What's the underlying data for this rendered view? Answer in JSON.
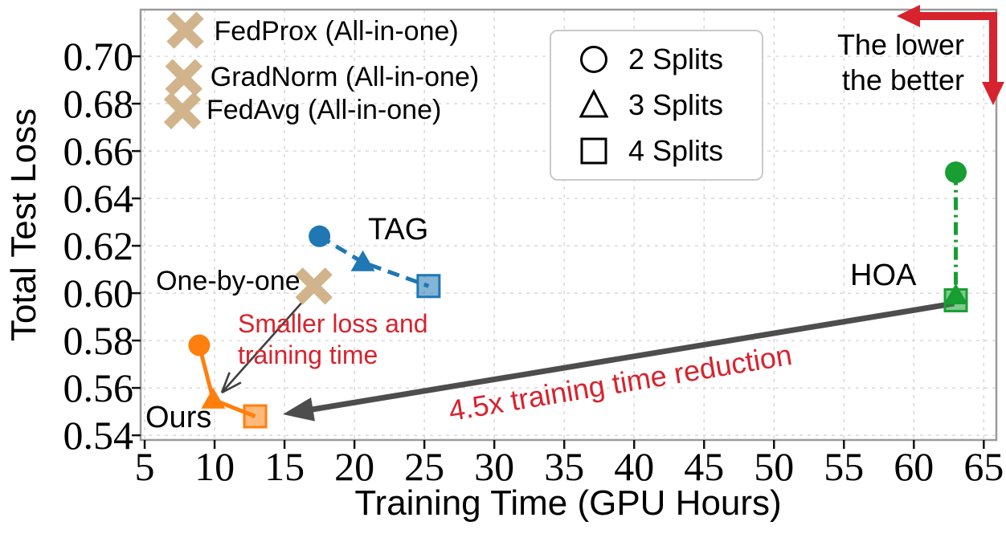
{
  "chart_data": {
    "type": "scatter",
    "xlabel": "Training Time (GPU Hours)",
    "ylabel": "Total Test Loss",
    "xlim": [
      4.71,
      65.9
    ],
    "ylim": [
      0.538,
      0.7197
    ],
    "xticks": [
      5,
      10,
      15,
      20,
      25,
      30,
      35,
      40,
      45,
      50,
      55,
      60,
      65
    ],
    "yticks": [
      0.54,
      0.56,
      0.58,
      0.6,
      0.62,
      0.64,
      0.66,
      0.68,
      0.7
    ],
    "grid": true,
    "marker_legend": [
      {
        "marker": "circle",
        "label": "2 Splits"
      },
      {
        "marker": "triangle",
        "label": "3 Splits"
      },
      {
        "marker": "square",
        "label": "4 Splits"
      }
    ],
    "series": [
      {
        "name": "TAG",
        "color": "#1f77b4",
        "line": "dashed",
        "points": [
          {
            "x": 17.5,
            "y": 0.624,
            "marker": "circle"
          },
          {
            "x": 20.6,
            "y": 0.613,
            "marker": "triangle"
          },
          {
            "x": 25.3,
            "y": 0.603,
            "marker": "square"
          }
        ]
      },
      {
        "name": "Ours",
        "color": "#ff7f0e",
        "line": "solid",
        "points": [
          {
            "x": 8.9,
            "y": 0.578,
            "marker": "circle"
          },
          {
            "x": 9.9,
            "y": 0.555,
            "marker": "triangle"
          },
          {
            "x": 12.9,
            "y": 0.548,
            "marker": "square"
          }
        ]
      },
      {
        "name": "HOA",
        "color": "#189e32",
        "line": "dashdot",
        "points": [
          {
            "x": 63.0,
            "y": 0.651,
            "marker": "circle"
          },
          {
            "x": 63.0,
            "y": 0.599,
            "marker": "triangle"
          },
          {
            "x": 63.0,
            "y": 0.597,
            "marker": "square"
          }
        ]
      }
    ],
    "baselines": [
      {
        "label": "FedProx (All-in-one)",
        "x": 7.9,
        "y": 0.711,
        "marker": "x"
      },
      {
        "label": "GradNorm (All-in-one)",
        "x": 7.8,
        "y": 0.691,
        "marker": "x"
      },
      {
        "label": "FedAvg (All-in-one)",
        "x": 7.7,
        "y": 0.677,
        "marker": "x"
      },
      {
        "label": "One-by-one",
        "x": 17.1,
        "y": 0.603,
        "marker": "x"
      }
    ],
    "annotations": {
      "smaller_loss": {
        "text": "Smaller loss and\ntraining time",
        "color": "#d7232e"
      },
      "time_reduction": {
        "text": "4.5x training time reduction",
        "color": "#d7232e"
      },
      "lower_better": {
        "text": "The lower\nthe better",
        "color": "#000000"
      }
    }
  },
  "colors": {
    "tag_blue": "#1f77b4",
    "ours_orange": "#ff7f0e",
    "hoa_green": "#189e32",
    "baseline_tan": "#d2b48c",
    "annotation_red": "#d7232e",
    "arrow_gray": "#4d4d4d",
    "thin_arrow_gray": "#3f3f3f",
    "grid_gray": "#d9d9d9",
    "spine_gray": "#9a9a9a",
    "tick_black": "#111111"
  }
}
